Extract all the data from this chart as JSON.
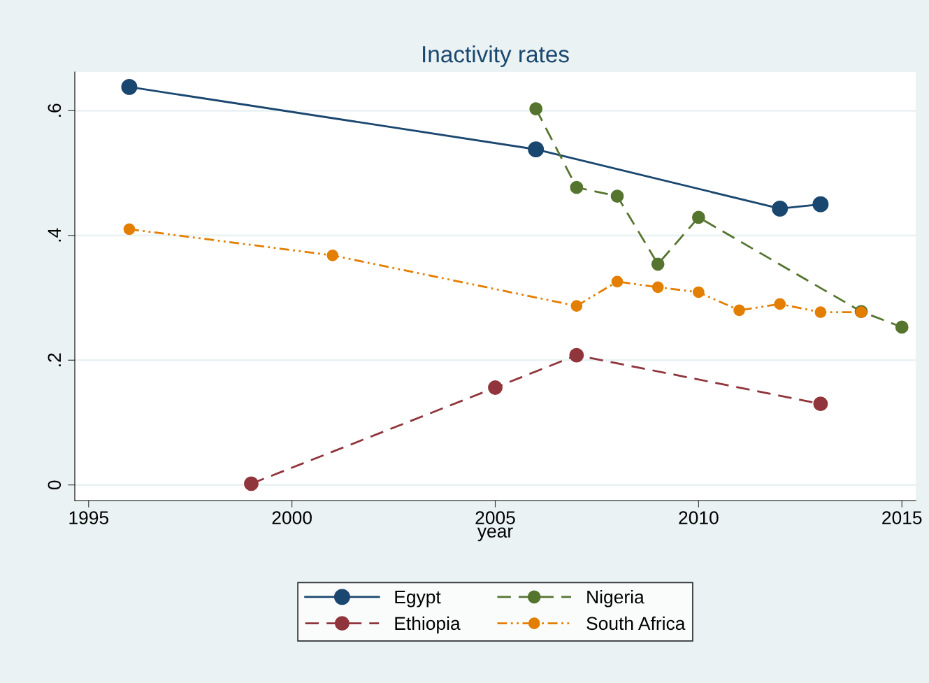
{
  "chart_data": {
    "type": "line",
    "title": "Inactivity rates",
    "xlabel": "year",
    "xlim": [
      1994.66,
      2015.34
    ],
    "xticks": [
      1995,
      2000,
      2005,
      2010,
      2015
    ],
    "ylim": [
      -0.025,
      0.662
    ],
    "yticks": [
      0,
      {
        "value": 0.2,
        "label": ".2"
      },
      {
        "value": 0.4,
        "label": ".4"
      },
      {
        "value": 0.6,
        "label": ".6"
      }
    ],
    "grid": "y",
    "legend": "bottom",
    "marker": "circle",
    "series": [
      {
        "name": "Egypt",
        "color": "#1a476f",
        "line_style": "solid",
        "x": [
          1996,
          2006,
          2012,
          2013
        ],
        "values": [
          0.638,
          0.538,
          0.443,
          0.45
        ]
      },
      {
        "name": "Ethiopia",
        "color": "#90353b",
        "line_style": "dashed",
        "x": [
          1999,
          2005,
          2007,
          2013
        ],
        "values": [
          0.002,
          0.156,
          0.208,
          0.13
        ]
      },
      {
        "name": "Nigeria",
        "color": "#55752f",
        "line_style": "dashed",
        "x": [
          2006,
          2007,
          2008,
          2009,
          2010,
          2014,
          2015
        ],
        "values": [
          0.603,
          0.477,
          0.463,
          0.354,
          0.429,
          0.278,
          0.253
        ]
      },
      {
        "name": "South Africa",
        "color": "#e37e00",
        "line_style": "dotted",
        "x": [
          1996,
          2001,
          2007,
          2008,
          2009,
          2010,
          2011,
          2012,
          2013,
          2014
        ],
        "values": [
          0.41,
          0.368,
          0.287,
          0.326,
          0.317,
          0.309,
          0.28,
          0.29,
          0.277,
          0.277
        ]
      }
    ]
  }
}
